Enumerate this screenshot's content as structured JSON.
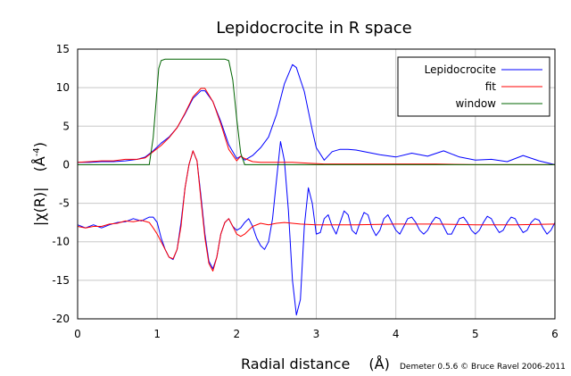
{
  "chart_data": {
    "type": "line",
    "title": "Lepidocrocite in R space",
    "xlabel": "Radial distance",
    "xlabel_unit": "(Å)",
    "ylabel_main": "|χ(R)|",
    "ylabel_unit": "(Å",
    "ylabel_unit_exp": "-4",
    "ylabel_unit_close": ")",
    "credit": "Demeter 0.5.6 © Bruce Ravel 2006-2011",
    "xlim": [
      0,
      6
    ],
    "ylim": [
      -20,
      15
    ],
    "xticks": [
      "0",
      "1",
      "2",
      "3",
      "4",
      "5",
      "6"
    ],
    "yticks": [
      "15",
      "10",
      "5",
      "0",
      "-5",
      "-10",
      "-15",
      "-20"
    ],
    "grid": true,
    "legend_position": "top-right",
    "legend": [
      "Lepidocrocite",
      "fit",
      "window"
    ],
    "colors": {
      "data": "#0000ff",
      "fit": "#ff0000",
      "window": "#006400"
    },
    "series": [
      {
        "name": "Lepidocrocite",
        "color": "#0000ff",
        "x": [
          0,
          0.15,
          0.3,
          0.45,
          0.6,
          0.75,
          0.85,
          0.95,
          1.05,
          1.15,
          1.25,
          1.35,
          1.45,
          1.55,
          1.6,
          1.7,
          1.8,
          1.9,
          2.0,
          2.05,
          2.1,
          2.2,
          2.3,
          2.4,
          2.5,
          2.6,
          2.7,
          2.75,
          2.85,
          2.95,
          3.0,
          3.1,
          3.2,
          3.3,
          3.4,
          3.5,
          3.6,
          3.8,
          4.0,
          4.2,
          4.4,
          4.6,
          4.8,
          5.0,
          5.2,
          5.4,
          5.6,
          5.8,
          6.0
        ],
        "y": [
          0.3,
          0.3,
          0.4,
          0.4,
          0.5,
          0.7,
          1.0,
          1.8,
          2.8,
          3.6,
          4.8,
          6.6,
          8.6,
          9.6,
          9.6,
          8.2,
          5.6,
          2.6,
          0.8,
          1.1,
          0.6,
          1.2,
          2.2,
          3.6,
          6.5,
          10.5,
          13.0,
          12.6,
          9.5,
          4.5,
          2.2,
          0.6,
          1.7,
          2.0,
          2.0,
          1.9,
          1.7,
          1.3,
          1.0,
          1.5,
          1.1,
          1.8,
          1.0,
          0.6,
          0.7,
          0.4,
          1.2,
          0.5,
          0.0
        ]
      },
      {
        "name": "fit",
        "color": "#ff0000",
        "x": [
          0,
          0.15,
          0.3,
          0.45,
          0.6,
          0.75,
          0.85,
          0.95,
          1.05,
          1.15,
          1.25,
          1.35,
          1.45,
          1.55,
          1.6,
          1.7,
          1.8,
          1.9,
          2.0,
          2.05,
          2.1,
          2.2,
          2.3,
          2.5,
          2.7,
          2.9,
          3.1,
          3.5,
          4.0,
          4.5,
          5.0,
          5.5,
          6.0
        ],
        "y": [
          0.3,
          0.4,
          0.5,
          0.5,
          0.7,
          0.7,
          0.9,
          1.7,
          2.5,
          3.5,
          4.8,
          6.7,
          8.8,
          9.9,
          9.9,
          8.2,
          5.3,
          2.0,
          0.5,
          1.1,
          0.8,
          0.4,
          0.3,
          0.3,
          0.3,
          0.2,
          0.1,
          0.1,
          0.1,
          0.1,
          0.0,
          0.0,
          0.0
        ]
      },
      {
        "name": "window",
        "color": "#006400",
        "x": [
          0,
          0.9,
          0.95,
          1.0,
          1.02,
          1.05,
          1.1,
          1.85,
          1.9,
          1.95,
          2.0,
          2.05,
          2.1,
          6.0
        ],
        "y": [
          0,
          0,
          3.5,
          10.0,
          12.5,
          13.5,
          13.7,
          13.7,
          13.5,
          11.0,
          6.0,
          1.5,
          0,
          0
        ]
      },
      {
        "name": "Lepidocrocite imaginary part",
        "color": "#0000ff",
        "x": [
          0,
          0.1,
          0.2,
          0.3,
          0.4,
          0.5,
          0.6,
          0.7,
          0.8,
          0.9,
          0.95,
          1.0,
          1.05,
          1.1,
          1.15,
          1.2,
          1.25,
          1.3,
          1.35,
          1.4,
          1.45,
          1.5,
          1.55,
          1.6,
          1.65,
          1.7,
          1.75,
          1.8,
          1.85,
          1.9,
          1.95,
          2.0,
          2.05,
          2.1,
          2.15,
          2.2,
          2.25,
          2.3,
          2.35,
          2.4,
          2.45,
          2.5,
          2.55,
          2.6,
          2.65,
          2.7,
          2.75,
          2.8,
          2.85,
          2.9,
          2.95,
          3.0,
          3.05,
          3.1,
          3.15,
          3.2,
          3.25,
          3.3,
          3.35,
          3.4,
          3.45,
          3.5,
          3.55,
          3.6,
          3.65,
          3.7,
          3.75,
          3.8,
          3.85,
          3.9,
          3.95,
          4.0,
          4.05,
          4.1,
          4.15,
          4.2,
          4.25,
          4.3,
          4.35,
          4.4,
          4.45,
          4.5,
          4.55,
          4.6,
          4.65,
          4.7,
          4.75,
          4.8,
          4.85,
          4.9,
          4.95,
          5.0,
          5.05,
          5.1,
          5.15,
          5.2,
          5.25,
          5.3,
          5.35,
          5.4,
          5.45,
          5.5,
          5.55,
          5.6,
          5.65,
          5.7,
          5.75,
          5.8,
          5.85,
          5.9,
          5.95,
          6.0
        ],
        "y": [
          -7.8,
          -8.2,
          -7.8,
          -8.2,
          -7.8,
          -7.5,
          -7.4,
          -7.0,
          -7.3,
          -6.8,
          -6.8,
          -7.5,
          -9.5,
          -11.0,
          -12.0,
          -12.3,
          -11.0,
          -7.5,
          -3.0,
          0.0,
          1.8,
          0.5,
          -4.0,
          -9.0,
          -12.5,
          -13.5,
          -12.0,
          -9.0,
          -7.5,
          -7.0,
          -8.0,
          -8.5,
          -8.2,
          -7.5,
          -7.0,
          -8.0,
          -9.5,
          -10.5,
          -11.0,
          -10.0,
          -7.0,
          -2.0,
          3.0,
          0.5,
          -6.0,
          -15.0,
          -19.5,
          -17.5,
          -8.0,
          -3.0,
          -5.0,
          -9.0,
          -8.8,
          -7.0,
          -6.5,
          -8.0,
          -9.0,
          -7.5,
          -6.0,
          -6.5,
          -8.5,
          -9.0,
          -7.5,
          -6.2,
          -6.5,
          -8.2,
          -9.2,
          -8.5,
          -7.0,
          -6.5,
          -7.5,
          -8.5,
          -9.0,
          -8.0,
          -7.0,
          -6.8,
          -7.5,
          -8.5,
          -9.0,
          -8.5,
          -7.5,
          -6.8,
          -7.0,
          -8.0,
          -9.0,
          -9.0,
          -8.0,
          -7.0,
          -6.8,
          -7.5,
          -8.5,
          -9.0,
          -8.5,
          -7.5,
          -6.7,
          -7.0,
          -8.0,
          -8.8,
          -8.5,
          -7.5,
          -6.8,
          -7.0,
          -8.0,
          -8.8,
          -8.5,
          -7.5,
          -7.0,
          -7.2,
          -8.2,
          -9.0,
          -8.5,
          -7.5
        ]
      },
      {
        "name": "fit imaginary part",
        "color": "#ff0000",
        "x": [
          0,
          0.1,
          0.2,
          0.3,
          0.4,
          0.5,
          0.6,
          0.7,
          0.8,
          0.9,
          0.95,
          1.0,
          1.05,
          1.1,
          1.15,
          1.2,
          1.25,
          1.3,
          1.35,
          1.4,
          1.45,
          1.5,
          1.55,
          1.6,
          1.65,
          1.7,
          1.75,
          1.8,
          1.85,
          1.9,
          1.95,
          2.0,
          2.05,
          2.1,
          2.2,
          2.3,
          2.4,
          2.5,
          2.6,
          2.8,
          3.0,
          3.5,
          4.0,
          4.5,
          5.0,
          5.5,
          6.0
        ],
        "y": [
          -8.0,
          -8.2,
          -8.0,
          -8.0,
          -7.7,
          -7.6,
          -7.3,
          -7.4,
          -7.2,
          -7.5,
          -8.2,
          -9.0,
          -10.0,
          -11.0,
          -12.0,
          -12.2,
          -11.0,
          -8.0,
          -3.0,
          0.0,
          1.8,
          0.5,
          -4.5,
          -9.5,
          -12.8,
          -13.8,
          -12.0,
          -9.0,
          -7.5,
          -7.0,
          -8.0,
          -9.0,
          -9.3,
          -9.0,
          -8.0,
          -7.6,
          -7.8,
          -7.6,
          -7.5,
          -7.7,
          -7.8,
          -7.8,
          -7.7,
          -7.7,
          -7.8,
          -7.8,
          -7.7
        ]
      }
    ]
  }
}
